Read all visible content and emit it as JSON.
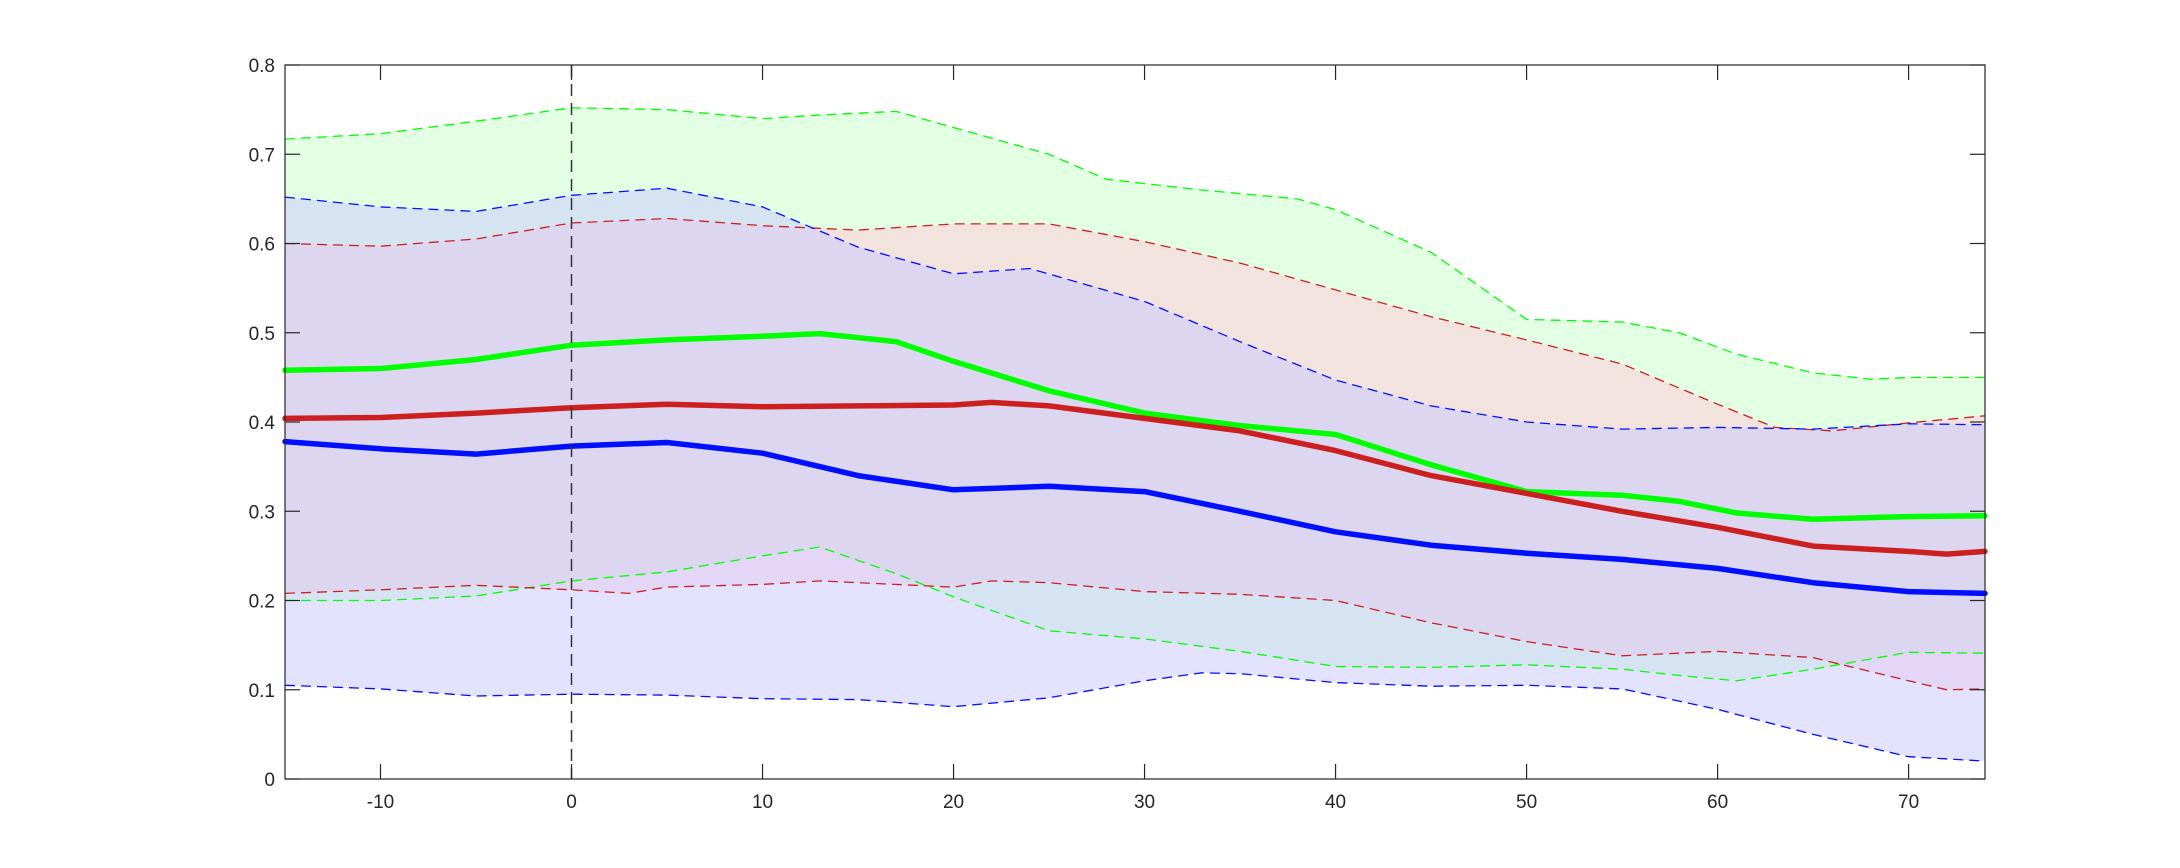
{
  "chart_data": {
    "type": "line",
    "title": "",
    "xlabel": "",
    "ylabel": "",
    "xlim": [
      -15,
      74
    ],
    "ylim": [
      0,
      0.8
    ],
    "grid": false,
    "x_ticks": [
      -10,
      0,
      10,
      20,
      30,
      40,
      50,
      60,
      70
    ],
    "x_tick_labels": [
      "-10",
      "0",
      "10",
      "20",
      "30",
      "40",
      "50",
      "60",
      "70"
    ],
    "y_ticks": [
      0,
      0.1,
      0.2,
      0.3,
      0.4,
      0.5,
      0.6,
      0.7,
      0.8
    ],
    "y_tick_labels": [
      "0",
      "0.1",
      "0.2",
      "0.3",
      "0.4",
      "0.5",
      "0.6",
      "0.7",
      "0.8"
    ],
    "reference_line_x": 0,
    "series": [
      {
        "color": "#00ff00",
        "band_fill": "#ccffcc",
        "mean": [
          [
            -15,
            0.458
          ],
          [
            -10,
            0.46
          ],
          [
            -5,
            0.47
          ],
          [
            0,
            0.486
          ],
          [
            5,
            0.492
          ],
          [
            10,
            0.496
          ],
          [
            13,
            0.499
          ],
          [
            17,
            0.49
          ],
          [
            20,
            0.468
          ],
          [
            25,
            0.435
          ],
          [
            30,
            0.41
          ],
          [
            35,
            0.396
          ],
          [
            40,
            0.386
          ],
          [
            45,
            0.352
          ],
          [
            50,
            0.322
          ],
          [
            55,
            0.318
          ],
          [
            58,
            0.311
          ],
          [
            61,
            0.298
          ],
          [
            65,
            0.291
          ],
          [
            70,
            0.294
          ],
          [
            74,
            0.295
          ]
        ],
        "upper": [
          [
            -15,
            0.717
          ],
          [
            -10,
            0.723
          ],
          [
            -5,
            0.737
          ],
          [
            0,
            0.752
          ],
          [
            5,
            0.75
          ],
          [
            10,
            0.74
          ],
          [
            13,
            0.744
          ],
          [
            17,
            0.748
          ],
          [
            20,
            0.73
          ],
          [
            25,
            0.7
          ],
          [
            28,
            0.672
          ],
          [
            33,
            0.66
          ],
          [
            38,
            0.65
          ],
          [
            40,
            0.638
          ],
          [
            45,
            0.59
          ],
          [
            50,
            0.515
          ],
          [
            55,
            0.512
          ],
          [
            58,
            0.5
          ],
          [
            61,
            0.476
          ],
          [
            65,
            0.455
          ],
          [
            68,
            0.448
          ],
          [
            70,
            0.45
          ],
          [
            74,
            0.45
          ]
        ],
        "lower": [
          [
            -15,
            0.2
          ],
          [
            -10,
            0.2
          ],
          [
            -5,
            0.205
          ],
          [
            0,
            0.222
          ],
          [
            5,
            0.232
          ],
          [
            10,
            0.25
          ],
          [
            13,
            0.26
          ],
          [
            17,
            0.23
          ],
          [
            20,
            0.204
          ],
          [
            25,
            0.166
          ],
          [
            30,
            0.157
          ],
          [
            35,
            0.143
          ],
          [
            40,
            0.126
          ],
          [
            45,
            0.125
          ],
          [
            50,
            0.128
          ],
          [
            55,
            0.123
          ],
          [
            58,
            0.116
          ],
          [
            61,
            0.11
          ],
          [
            65,
            0.123
          ],
          [
            70,
            0.142
          ],
          [
            74,
            0.141
          ]
        ]
      },
      {
        "color": "#cc1f1f",
        "band_fill": "#ffccdd",
        "mean": [
          [
            -15,
            0.404
          ],
          [
            -10,
            0.405
          ],
          [
            -5,
            0.41
          ],
          [
            0,
            0.416
          ],
          [
            5,
            0.42
          ],
          [
            10,
            0.417
          ],
          [
            15,
            0.418
          ],
          [
            20,
            0.419
          ],
          [
            22,
            0.422
          ],
          [
            25,
            0.418
          ],
          [
            30,
            0.404
          ],
          [
            35,
            0.39
          ],
          [
            40,
            0.368
          ],
          [
            45,
            0.34
          ],
          [
            50,
            0.32
          ],
          [
            55,
            0.3
          ],
          [
            60,
            0.282
          ],
          [
            65,
            0.261
          ],
          [
            70,
            0.255
          ],
          [
            72,
            0.252
          ],
          [
            74,
            0.255
          ]
        ],
        "upper": [
          [
            -15,
            0.6
          ],
          [
            -10,
            0.597
          ],
          [
            -5,
            0.605
          ],
          [
            0,
            0.623
          ],
          [
            5,
            0.628
          ],
          [
            10,
            0.62
          ],
          [
            15,
            0.615
          ],
          [
            20,
            0.622
          ],
          [
            25,
            0.622
          ],
          [
            30,
            0.602
          ],
          [
            35,
            0.578
          ],
          [
            40,
            0.548
          ],
          [
            45,
            0.518
          ],
          [
            50,
            0.492
          ],
          [
            55,
            0.465
          ],
          [
            60,
            0.42
          ],
          [
            63,
            0.394
          ],
          [
            66,
            0.39
          ],
          [
            70,
            0.399
          ],
          [
            74,
            0.407
          ]
        ],
        "lower": [
          [
            -15,
            0.208
          ],
          [
            -10,
            0.212
          ],
          [
            -5,
            0.217
          ],
          [
            0,
            0.212
          ],
          [
            3,
            0.208
          ],
          [
            5,
            0.215
          ],
          [
            10,
            0.218
          ],
          [
            13,
            0.222
          ],
          [
            20,
            0.215
          ],
          [
            22,
            0.222
          ],
          [
            25,
            0.22
          ],
          [
            30,
            0.21
          ],
          [
            35,
            0.207
          ],
          [
            40,
            0.2
          ],
          [
            45,
            0.175
          ],
          [
            50,
            0.154
          ],
          [
            55,
            0.138
          ],
          [
            60,
            0.143
          ],
          [
            65,
            0.136
          ],
          [
            70,
            0.11
          ],
          [
            72,
            0.1
          ],
          [
            74,
            0.101
          ]
        ]
      },
      {
        "color": "#0010ff",
        "band_fill": "#ccccff",
        "mean": [
          [
            -15,
            0.378
          ],
          [
            -10,
            0.37
          ],
          [
            -5,
            0.364
          ],
          [
            0,
            0.373
          ],
          [
            5,
            0.377
          ],
          [
            10,
            0.365
          ],
          [
            15,
            0.34
          ],
          [
            20,
            0.324
          ],
          [
            25,
            0.328
          ],
          [
            30,
            0.322
          ],
          [
            35,
            0.3
          ],
          [
            40,
            0.277
          ],
          [
            45,
            0.262
          ],
          [
            50,
            0.253
          ],
          [
            55,
            0.246
          ],
          [
            60,
            0.236
          ],
          [
            65,
            0.22
          ],
          [
            70,
            0.21
          ],
          [
            74,
            0.208
          ]
        ],
        "upper": [
          [
            -15,
            0.652
          ],
          [
            -10,
            0.641
          ],
          [
            -5,
            0.636
          ],
          [
            0,
            0.654
          ],
          [
            5,
            0.662
          ],
          [
            10,
            0.641
          ],
          [
            15,
            0.596
          ],
          [
            20,
            0.566
          ],
          [
            24,
            0.572
          ],
          [
            30,
            0.535
          ],
          [
            35,
            0.49
          ],
          [
            40,
            0.447
          ],
          [
            45,
            0.418
          ],
          [
            50,
            0.4
          ],
          [
            55,
            0.392
          ],
          [
            60,
            0.394
          ],
          [
            65,
            0.392
          ],
          [
            70,
            0.398
          ],
          [
            74,
            0.397
          ]
        ],
        "lower": [
          [
            -15,
            0.105
          ],
          [
            -10,
            0.101
          ],
          [
            -5,
            0.093
          ],
          [
            0,
            0.095
          ],
          [
            5,
            0.094
          ],
          [
            10,
            0.09
          ],
          [
            15,
            0.089
          ],
          [
            20,
            0.081
          ],
          [
            25,
            0.091
          ],
          [
            30,
            0.11
          ],
          [
            33,
            0.119
          ],
          [
            35,
            0.118
          ],
          [
            40,
            0.108
          ],
          [
            45,
            0.104
          ],
          [
            50,
            0.105
          ],
          [
            55,
            0.101
          ],
          [
            60,
            0.078
          ],
          [
            65,
            0.05
          ],
          [
            70,
            0.025
          ],
          [
            74,
            0.02
          ]
        ]
      }
    ]
  }
}
